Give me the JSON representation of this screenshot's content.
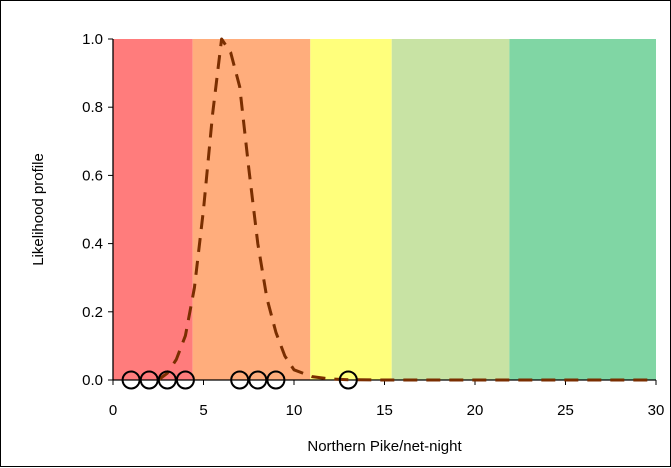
{
  "chart_data": {
    "type": "line",
    "xlabel": "Northern Pike/net-night",
    "ylabel": "Likelihood profile",
    "xlim": [
      0,
      30
    ],
    "ylim": [
      0,
      1
    ],
    "x_ticks": [
      0,
      5,
      10,
      15,
      20,
      25,
      30
    ],
    "y_ticks": [
      0.0,
      0.2,
      0.4,
      0.6,
      0.8,
      1.0
    ],
    "x_tick_labels": [
      "0",
      "5",
      "10",
      "15",
      "20",
      "25",
      "30"
    ],
    "y_tick_labels": [
      "0.0",
      "0.2",
      "0.4",
      "0.6",
      "0.8",
      "1.0"
    ],
    "grid": false,
    "bands": [
      {
        "from": 0,
        "to": 4.4,
        "color": "#ff7c7c"
      },
      {
        "from": 4.4,
        "to": 10.9,
        "color": "#ffad7c"
      },
      {
        "from": 10.9,
        "to": 15.4,
        "color": "#ffff7c"
      },
      {
        "from": 15.4,
        "to": 21.9,
        "color": "#c8e3a4"
      },
      {
        "from": 21.9,
        "to": 30,
        "color": "#80d6a4"
      }
    ],
    "series": [
      {
        "style": "dashed",
        "color": "#7a2e00",
        "x": [
          2.5,
          3,
          3.5,
          4,
          4.5,
          5,
          5.5,
          6,
          6.5,
          7,
          7.5,
          8,
          8.5,
          9,
          9.5,
          10,
          11,
          12,
          13,
          15,
          18,
          22,
          26,
          30
        ],
        "y": [
          0.0,
          0.02,
          0.06,
          0.13,
          0.27,
          0.5,
          0.78,
          1.0,
          0.96,
          0.86,
          0.62,
          0.4,
          0.24,
          0.14,
          0.07,
          0.03,
          0.01,
          0.003,
          0.001,
          0.0,
          0.0,
          0.0,
          0.0,
          0.0
        ]
      }
    ],
    "observations": {
      "marker": "open-circle",
      "x": [
        1,
        2,
        3,
        4,
        7,
        8,
        9,
        13
      ],
      "y": [
        0,
        0,
        0,
        0,
        0,
        0,
        0,
        0
      ]
    }
  }
}
